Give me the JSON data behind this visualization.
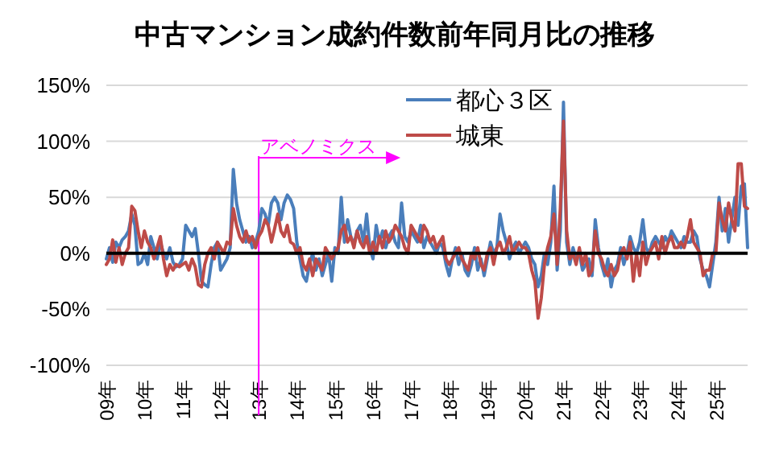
{
  "chart_data": {
    "type": "line",
    "title": "中古マンション成約件数前年同月比の推移",
    "categories": [
      "09年",
      null,
      null,
      null,
      null,
      null,
      null,
      null,
      null,
      null,
      null,
      null,
      "10年",
      null,
      null,
      null,
      null,
      null,
      null,
      null,
      null,
      null,
      null,
      null,
      "11年",
      null,
      null,
      null,
      null,
      null,
      null,
      null,
      null,
      null,
      null,
      null,
      "12年",
      null,
      null,
      null,
      null,
      null,
      null,
      null,
      null,
      null,
      null,
      null,
      "13年",
      null,
      null,
      null,
      null,
      null,
      null,
      null,
      null,
      null,
      null,
      null,
      "14年",
      null,
      null,
      null,
      null,
      null,
      null,
      null,
      null,
      null,
      null,
      null,
      "15年",
      null,
      null,
      null,
      null,
      null,
      null,
      null,
      null,
      null,
      null,
      null,
      "16年",
      null,
      null,
      null,
      null,
      null,
      null,
      null,
      null,
      null,
      null,
      null,
      "17年",
      null,
      null,
      null,
      null,
      null,
      null,
      null,
      null,
      null,
      null,
      null,
      "18年",
      null,
      null,
      null,
      null,
      null,
      null,
      null,
      null,
      null,
      null,
      null,
      "19年",
      null,
      null,
      null,
      null,
      null,
      null,
      null,
      null,
      null,
      null,
      null,
      "20年",
      null,
      null,
      null,
      null,
      null,
      null,
      null,
      null,
      null,
      null,
      null,
      "21年",
      null,
      null,
      null,
      null,
      null,
      null,
      null,
      null,
      null,
      null,
      null,
      "22年",
      null,
      null,
      null,
      null,
      null,
      null,
      null,
      null,
      null,
      null,
      null,
      "23年",
      null,
      null,
      null,
      null,
      null,
      null,
      null,
      null,
      null,
      null,
      null,
      "24年",
      null,
      null,
      null,
      null,
      null,
      null,
      null,
      null,
      null,
      null,
      null,
      "25年",
      null,
      null,
      null,
      null,
      null,
      null,
      null,
      null,
      null,
      null
    ],
    "series": [
      {
        "name": "都心３区",
        "color": "#4a7ebb",
        "values": [
          -5,
          5,
          -8,
          10,
          5,
          12,
          15,
          20,
          35,
          25,
          -10,
          -8,
          0,
          -10,
          15,
          5,
          -5,
          10,
          0,
          -5,
          5,
          -8,
          -12,
          -10,
          -5,
          25,
          20,
          15,
          22,
          0,
          -25,
          -28,
          -30,
          -10,
          5,
          10,
          -15,
          -10,
          -5,
          5,
          75,
          45,
          30,
          20,
          10,
          15,
          5,
          10,
          20,
          40,
          35,
          25,
          45,
          50,
          45,
          30,
          45,
          52,
          48,
          40,
          10,
          -5,
          -20,
          -25,
          -10,
          0,
          -15,
          -5,
          -20,
          -10,
          0,
          -25,
          5,
          0,
          50,
          10,
          30,
          15,
          8,
          20,
          25,
          10,
          35,
          5,
          -5,
          25,
          10,
          20,
          5,
          15,
          20,
          10,
          5,
          45,
          15,
          10,
          20,
          15,
          10,
          25,
          5,
          15,
          10,
          5,
          0,
          10,
          5,
          -10,
          -20,
          -5,
          5,
          -10,
          0,
          -15,
          -20,
          -10,
          5,
          -15,
          -5,
          -20,
          -5,
          10,
          0,
          5,
          35,
          20,
          10,
          -5,
          5,
          10,
          0,
          5,
          10,
          5,
          -5,
          -10,
          -30,
          -20,
          0,
          -10,
          10,
          60,
          -15,
          20,
          135,
          10,
          -10,
          5,
          -5,
          0,
          -15,
          -10,
          -5,
          -20,
          30,
          5,
          -10,
          -20,
          -5,
          -30,
          -15,
          -10,
          5,
          -10,
          0,
          15,
          5,
          0,
          10,
          30,
          5,
          0,
          10,
          15,
          10,
          5,
          15,
          10,
          20,
          15,
          10,
          5,
          15,
          10,
          10,
          20,
          15,
          -5,
          -15,
          -20,
          -30,
          -10,
          10,
          50,
          20,
          40,
          10,
          30,
          50,
          25,
          60,
          62,
          5
        ]
      },
      {
        "name": "城東",
        "color": "#be4b48",
        "values": [
          -10,
          -5,
          12,
          -8,
          5,
          -10,
          0,
          5,
          42,
          38,
          20,
          5,
          20,
          10,
          5,
          -5,
          5,
          15,
          -5,
          -20,
          -10,
          -15,
          -10,
          -12,
          -10,
          -8,
          -15,
          -5,
          -12,
          -28,
          -30,
          -10,
          0,
          5,
          -5,
          10,
          5,
          0,
          10,
          8,
          40,
          25,
          15,
          10,
          20,
          10,
          15,
          5,
          15,
          20,
          30,
          25,
          10,
          22,
          35,
          20,
          15,
          25,
          10,
          8,
          0,
          5,
          -10,
          -15,
          -5,
          -20,
          -5,
          -10,
          -15,
          5,
          0,
          -5,
          0,
          5,
          20,
          25,
          10,
          15,
          5,
          20,
          10,
          5,
          15,
          0,
          10,
          0,
          15,
          5,
          20,
          10,
          15,
          25,
          20,
          15,
          5,
          0,
          25,
          20,
          15,
          10,
          25,
          20,
          10,
          15,
          5,
          10,
          15,
          -5,
          -10,
          -5,
          0,
          5,
          -5,
          -10,
          -15,
          0,
          -5,
          5,
          -10,
          -15,
          0,
          5,
          -10,
          5,
          10,
          0,
          5,
          15,
          0,
          5,
          10,
          5,
          5,
          0,
          -15,
          -25,
          -58,
          -40,
          -10,
          5,
          15,
          35,
          -10,
          40,
          118,
          20,
          -5,
          0,
          -10,
          5,
          -10,
          0,
          -20,
          -15,
          20,
          0,
          -5,
          -15,
          -20,
          -10,
          -20,
          -15,
          0,
          5,
          -5,
          10,
          -25,
          0,
          -20,
          10,
          -10,
          0,
          5,
          10,
          -5,
          15,
          0,
          10,
          15,
          5,
          5,
          10,
          5,
          15,
          30,
          10,
          5,
          0,
          -20,
          -15,
          -15,
          0,
          0,
          45,
          30,
          20,
          45,
          30,
          20,
          80,
          80,
          42,
          40
        ]
      }
    ],
    "ylim": [
      -100,
      150
    ],
    "yticks": [
      {
        "value": -100,
        "label": "-100%"
      },
      {
        "value": -50,
        "label": "-50%"
      },
      {
        "value": 0,
        "label": "0%"
      },
      {
        "value": 50,
        "label": "50%"
      },
      {
        "value": 100,
        "label": "100%"
      },
      {
        "value": 150,
        "label": "150%"
      }
    ],
    "grid": "y",
    "legend": "top",
    "marker": "none",
    "line_style": "solid",
    "ref_lines": [
      {
        "axis": "x",
        "value": "13年",
        "label": "アベノミクス",
        "color": "#ff00ff"
      }
    ]
  }
}
